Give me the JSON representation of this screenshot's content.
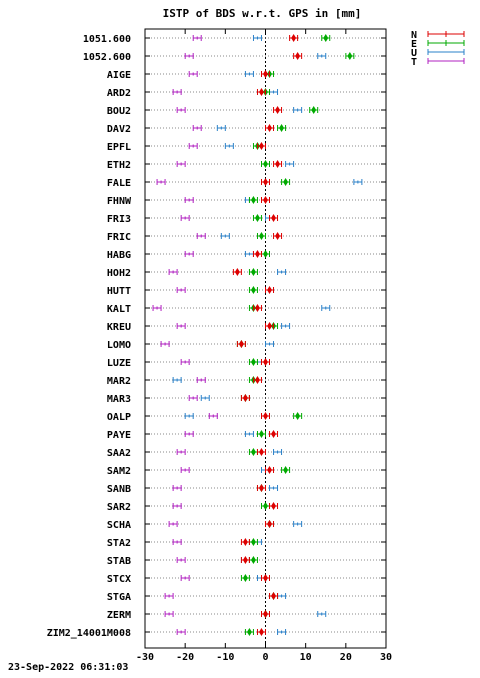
{
  "chart_data": {
    "type": "scatter",
    "title": "ISTP of BDS w.r.t. GPS in [mm]",
    "xlim": [
      -30,
      30
    ],
    "xticks": [
      -30,
      -20,
      -10,
      0,
      10,
      20,
      30
    ],
    "grid": true,
    "legend": "top-right",
    "series": [
      {
        "name": "N",
        "color": "#dd0000"
      },
      {
        "name": "E",
        "color": "#00aa00"
      },
      {
        "name": "U",
        "color": "#2a80c8"
      },
      {
        "name": "T",
        "color": "#b020c0"
      }
    ],
    "stations": [
      {
        "name": "1051.600",
        "values": [
          7,
          15,
          -2,
          -17
        ]
      },
      {
        "name": "1052.600",
        "values": [
          8,
          21,
          14,
          -19
        ]
      },
      {
        "name": "AIGE",
        "values": [
          0,
          1,
          -4,
          -18
        ]
      },
      {
        "name": "ARD2",
        "values": [
          -1,
          0,
          2,
          -22
        ]
      },
      {
        "name": "BOU2",
        "values": [
          3,
          12,
          8,
          -21
        ]
      },
      {
        "name": "DAV2",
        "values": [
          1,
          4,
          -11,
          -17
        ]
      },
      {
        "name": "EPFL",
        "values": [
          -1,
          -2,
          -9,
          -18
        ]
      },
      {
        "name": "ETH2",
        "values": [
          3,
          0,
          6,
          -21
        ]
      },
      {
        "name": "FALE",
        "values": [
          0,
          5,
          23,
          -26
        ]
      },
      {
        "name": "FHNW",
        "values": [
          0,
          -3,
          -4,
          -19
        ]
      },
      {
        "name": "FRI3",
        "values": [
          2,
          -2,
          1,
          -20
        ]
      },
      {
        "name": "FRIC",
        "values": [
          3,
          -1,
          -10,
          -16
        ]
      },
      {
        "name": "HABG",
        "values": [
          -2,
          0,
          -4,
          -19
        ]
      },
      {
        "name": "HOH2",
        "values": [
          -7,
          -3,
          4,
          -23
        ]
      },
      {
        "name": "HUTT",
        "values": [
          1,
          -3,
          1,
          -21
        ]
      },
      {
        "name": "KALT",
        "values": [
          -2,
          -3,
          15,
          -27
        ]
      },
      {
        "name": "KREU",
        "values": [
          1,
          2,
          5,
          -21
        ]
      },
      {
        "name": "LOMO",
        "values": [
          -6,
          -6,
          1,
          -25
        ]
      },
      {
        "name": "LUZE",
        "values": [
          0,
          -3,
          -2,
          -20
        ]
      },
      {
        "name": "MAR2",
        "values": [
          -2,
          -3,
          -22,
          -16
        ]
      },
      {
        "name": "MAR3",
        "values": [
          -5,
          -5,
          -15,
          -18
        ]
      },
      {
        "name": "OALP",
        "values": [
          0,
          8,
          -19,
          -13
        ]
      },
      {
        "name": "PAYE",
        "values": [
          2,
          -1,
          -4,
          -19
        ]
      },
      {
        "name": "SAA2",
        "values": [
          -1,
          -3,
          3,
          -21
        ]
      },
      {
        "name": "SAM2",
        "values": [
          1,
          5,
          0,
          -20
        ]
      },
      {
        "name": "SANB",
        "values": [
          -1,
          -1,
          2,
          -22
        ]
      },
      {
        "name": "SAR2",
        "values": [
          2,
          0,
          1,
          -22
        ]
      },
      {
        "name": "SCHA",
        "values": [
          1,
          1,
          8,
          -23
        ]
      },
      {
        "name": "STA2",
        "values": [
          -5,
          -3,
          -2,
          -22
        ]
      },
      {
        "name": "STAB",
        "values": [
          -5,
          -3,
          -5,
          -21
        ]
      },
      {
        "name": "STCX",
        "values": [
          0,
          -5,
          -1,
          -20
        ]
      },
      {
        "name": "STGA",
        "values": [
          2,
          2,
          4,
          -24
        ]
      },
      {
        "name": "ZERM",
        "values": [
          0,
          0,
          14,
          -24
        ]
      },
      {
        "name": "ZIM2_14001M008",
        "values": [
          -1,
          -4,
          4,
          -21
        ]
      }
    ]
  },
  "footer": {
    "timestamp": "23-Sep-2022 06:31:03"
  }
}
